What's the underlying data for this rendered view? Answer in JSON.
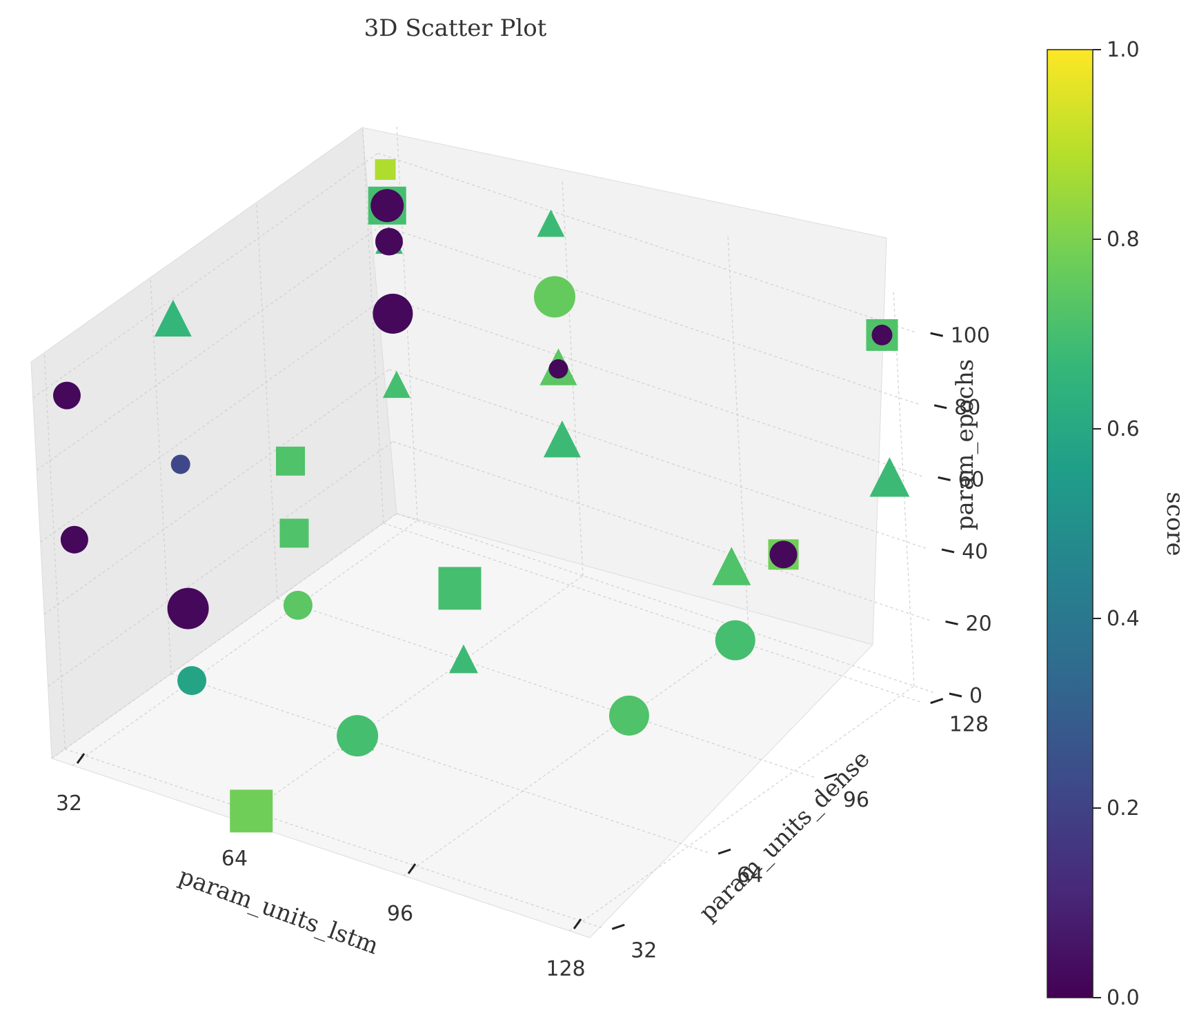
{
  "chart_data": {
    "type": "scatter",
    "projection": "3d",
    "title": "3D Scatter Plot",
    "xlabel": "param_units_lstm",
    "ylabel": "param_units_dense",
    "zlabel": "param_epochs",
    "xticks": [
      "32",
      "64",
      "96",
      "128"
    ],
    "yticks": [
      "32",
      "64",
      "96",
      "128"
    ],
    "zticks": [
      "0",
      "20",
      "40",
      "60",
      "80",
      "100"
    ],
    "xlim": [
      28,
      132
    ],
    "ylim": [
      28,
      132
    ],
    "zlim": [
      0,
      110
    ],
    "grid": true,
    "marker_encoding": "marker shape and size vary by configuration (circle, square, triangle)",
    "colorbar": {
      "label": "score",
      "colormap": "viridis",
      "range": [
        0.0,
        1.0
      ],
      "ticks": [
        "0.0",
        "0.2",
        "0.4",
        "0.6",
        "0.8",
        "1.0"
      ],
      "colors": [
        "#440154",
        "#482878",
        "#3e4989",
        "#31688e",
        "#26828e",
        "#1f9e89",
        "#35b779",
        "#6ece58",
        "#b5de2b",
        "#fde725"
      ]
    },
    "points": [
      {
        "x": 32,
        "y": 128,
        "z": 100,
        "score": 0.88,
        "marker": "square",
        "size": 30
      },
      {
        "x": 64,
        "y": 128,
        "z": 100,
        "score": 0.68,
        "marker": "triangle",
        "size": 40
      },
      {
        "x": 32,
        "y": 128,
        "z": 90,
        "score": 0.7,
        "marker": "square",
        "size": 55
      },
      {
        "x": 32,
        "y": 128,
        "z": 90,
        "score": 0.02,
        "marker": "circle",
        "size": 48
      },
      {
        "x": 32,
        "y": 64,
        "z": 100,
        "score": 0.66,
        "marker": "triangle",
        "size": 54
      },
      {
        "x": 32,
        "y": 128,
        "z": 80,
        "score": 0.68,
        "marker": "triangle",
        "size": 40
      },
      {
        "x": 32,
        "y": 128,
        "z": 80,
        "score": 0.02,
        "marker": "circle",
        "size": 40
      },
      {
        "x": 64,
        "y": 128,
        "z": 80,
        "score": 0.76,
        "marker": "circle",
        "size": 60
      },
      {
        "x": 32,
        "y": 32,
        "z": 100,
        "score": 0.02,
        "marker": "circle",
        "size": 40
      },
      {
        "x": 32,
        "y": 96,
        "z": 40,
        "score": 0.72,
        "marker": "square",
        "size": 42
      },
      {
        "x": 32,
        "y": 64,
        "z": 60,
        "score": 0.22,
        "marker": "circle",
        "size": 28
      },
      {
        "x": 32,
        "y": 128,
        "z": 60,
        "score": 0.02,
        "marker": "circle",
        "size": 58
      },
      {
        "x": 32,
        "y": 32,
        "z": 60,
        "score": 0.02,
        "marker": "circle",
        "size": 40
      },
      {
        "x": 32,
        "y": 96,
        "z": 20,
        "score": 0.72,
        "marker": "square",
        "size": 42
      },
      {
        "x": 64,
        "y": 128,
        "z": 60,
        "score": 0.74,
        "marker": "triangle",
        "size": 54
      },
      {
        "x": 64,
        "y": 128,
        "z": 60,
        "score": 0.02,
        "marker": "circle",
        "size": 28
      },
      {
        "x": 64,
        "y": 128,
        "z": 40,
        "score": 0.68,
        "marker": "triangle",
        "size": 54
      },
      {
        "x": 32,
        "y": 128,
        "z": 40,
        "score": 0.7,
        "marker": "triangle",
        "size": 40
      },
      {
        "x": 32,
        "y": 64,
        "z": 20,
        "score": 0.02,
        "marker": "circle",
        "size": 60
      },
      {
        "x": 32,
        "y": 64,
        "z": 0,
        "score": 0.58,
        "marker": "circle",
        "size": 42
      },
      {
        "x": 32,
        "y": 96,
        "z": 0,
        "score": 0.74,
        "marker": "circle",
        "size": 42
      },
      {
        "x": 64,
        "y": 96,
        "z": 20,
        "score": 0.7,
        "marker": "square",
        "size": 62
      },
      {
        "x": 96,
        "y": 128,
        "z": 20,
        "score": 0.72,
        "marker": "triangle",
        "size": 56
      },
      {
        "x": 96,
        "y": 128,
        "z": 0,
        "score": 0.7,
        "marker": "circle",
        "size": 58
      },
      {
        "x": 64,
        "y": 96,
        "z": 0,
        "score": 0.68,
        "marker": "triangle",
        "size": 42
      },
      {
        "x": 96,
        "y": 96,
        "z": 0,
        "score": 0.72,
        "marker": "circle",
        "size": 58
      },
      {
        "x": 64,
        "y": 64,
        "z": 0,
        "score": 0.7,
        "marker": "triangle",
        "size": 48
      },
      {
        "x": 64,
        "y": 64,
        "z": 0,
        "score": 0.7,
        "marker": "circle",
        "size": 60
      },
      {
        "x": 64,
        "y": 32,
        "z": 0,
        "score": 0.78,
        "marker": "square",
        "size": 62
      },
      {
        "x": 128,
        "y": 128,
        "z": 100,
        "score": 0.72,
        "marker": "square",
        "size": 46
      },
      {
        "x": 128,
        "y": 128,
        "z": 100,
        "score": 0.02,
        "marker": "circle",
        "size": 30
      },
      {
        "x": 128,
        "y": 128,
        "z": 60,
        "score": 0.68,
        "marker": "triangle",
        "size": 58
      },
      {
        "x": 128,
        "y": 96,
        "z": 60,
        "score": 0.78,
        "marker": "square",
        "size": 44
      },
      {
        "x": 128,
        "y": 96,
        "z": 60,
        "score": 0.02,
        "marker": "circle",
        "size": 40
      }
    ]
  }
}
